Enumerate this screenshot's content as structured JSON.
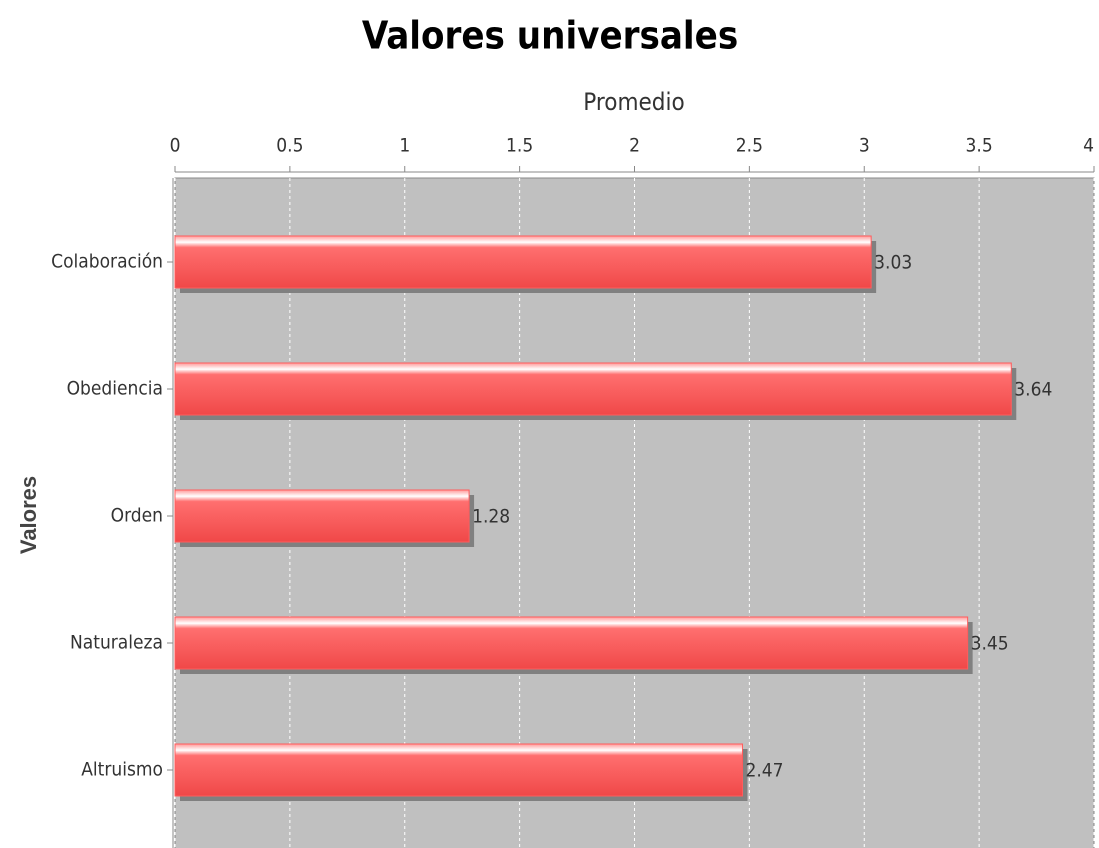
{
  "chart_data": {
    "type": "bar",
    "orientation": "horizontal",
    "title": "Valores universales",
    "x_label": "Promedio",
    "y_label": "Valores",
    "categories": [
      "Colaboración",
      "Obediencia",
      "Orden",
      "Naturaleza",
      "Altruismo"
    ],
    "values": [
      3.03,
      3.64,
      1.28,
      3.45,
      2.47
    ],
    "color": "#ff5c5c",
    "xlim": [
      0,
      4
    ],
    "xticks": [
      0,
      0.5,
      1,
      1.5,
      2,
      2.5,
      3,
      3.5,
      4
    ],
    "grid": true
  }
}
